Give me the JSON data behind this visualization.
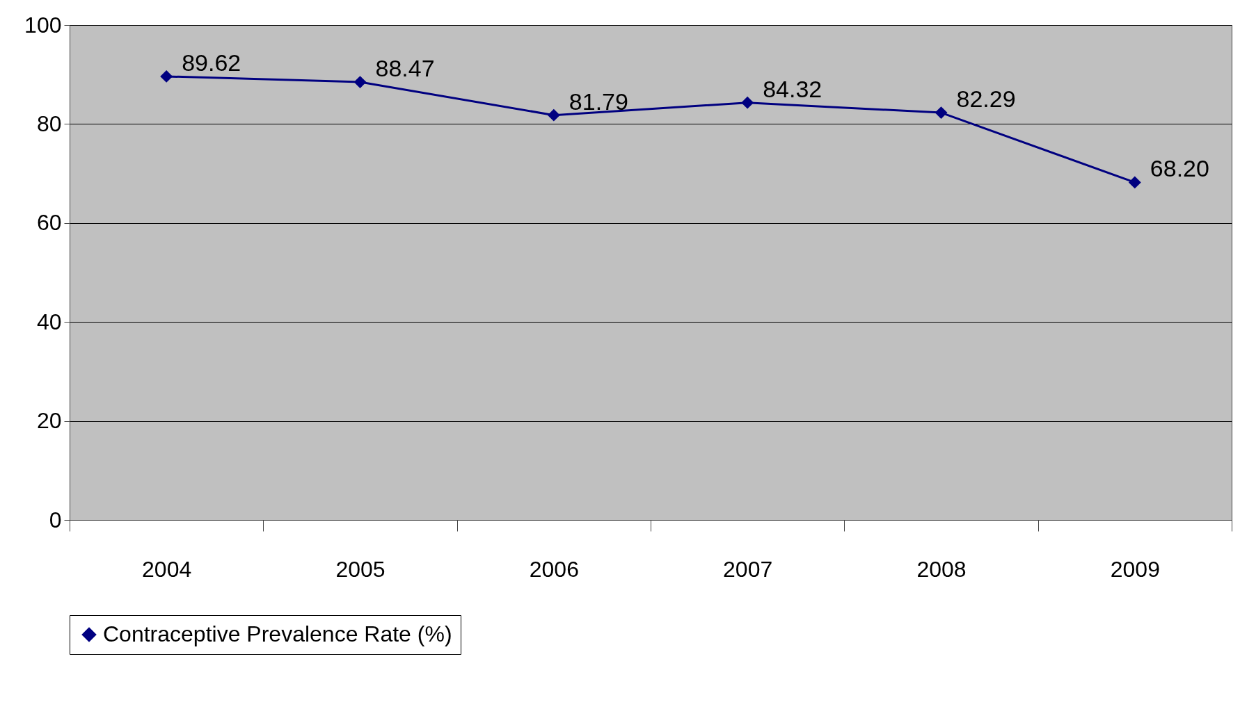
{
  "chart_data": {
    "type": "line",
    "categories": [
      "2004",
      "2005",
      "2006",
      "2007",
      "2008",
      "2009"
    ],
    "series": [
      {
        "name": "Contraceptive Prevalence Rate (%)",
        "color": "#000080",
        "values": [
          89.62,
          88.47,
          81.79,
          84.32,
          82.29,
          68.2
        ],
        "value_labels": [
          "89.62",
          "88.47",
          "81.79",
          "84.32",
          "82.29",
          "68.20"
        ]
      }
    ],
    "ylim": [
      0,
      100
    ],
    "yticks": [
      0,
      20,
      40,
      60,
      80,
      100
    ],
    "grid": "y",
    "legend": "bottom",
    "marker": "diamond",
    "line_style": "solid"
  }
}
